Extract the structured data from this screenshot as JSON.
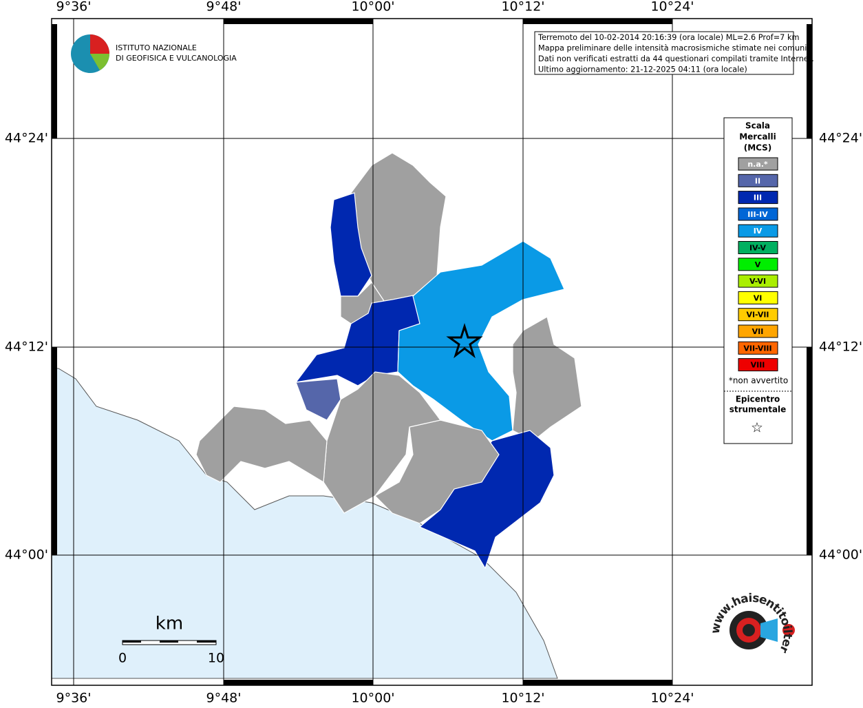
{
  "map": {
    "lon_labels": [
      "9°36'",
      "9°48'",
      "10°00'",
      "10°12'",
      "10°24'"
    ],
    "lat_labels": [
      "44°24'",
      "44°12'",
      "44°00'"
    ],
    "logo": {
      "line1": "ISTITUTO NAZIONALE",
      "line2": "DI GEOFISICA E VULCANOLOGIA"
    },
    "info": [
      "Terremoto del 10-02-2014 20:16:39 (ora locale) ML=2.6 Prof=7 km",
      "Mappa preliminare delle intensità macrosismiche stimate nei comuni",
      "Dati non verificati estratti da 44 questionari compilati tramite Internet.",
      "Ultimo aggiornamento: 21-12-2025 04:11 (ora locale)"
    ],
    "legend": {
      "title_lines": [
        "Scala",
        "Mercalli",
        "(MCS)"
      ],
      "items": [
        {
          "label": "n.a.*",
          "color": "#a0a0a0"
        },
        {
          "label": "II",
          "color": "#5566aa"
        },
        {
          "label": "III",
          "color": "#0028b0"
        },
        {
          "label": "III-IV",
          "color": "#0066d6"
        },
        {
          "label": "IV",
          "color": "#0a9ae6"
        },
        {
          "label": "IV-V",
          "color": "#00b060"
        },
        {
          "label": "V",
          "color": "#00ee00"
        },
        {
          "label": "V-VI",
          "color": "#aaee00"
        },
        {
          "label": "VI",
          "color": "#ffff00"
        },
        {
          "label": "VI-VII",
          "color": "#ffcc00"
        },
        {
          "label": "VII",
          "color": "#ffa500"
        },
        {
          "label": "VII-VIII",
          "color": "#ff6600"
        },
        {
          "label": "VIII",
          "color": "#ee0000"
        }
      ],
      "note": "*non avvertito",
      "epicentre_lines": [
        "Epicentro",
        "strumentale"
      ]
    },
    "scale_bar": {
      "unit": "km",
      "start": "0",
      "end": "10"
    },
    "site": "www.haisentitoilterremoto.it"
  }
}
